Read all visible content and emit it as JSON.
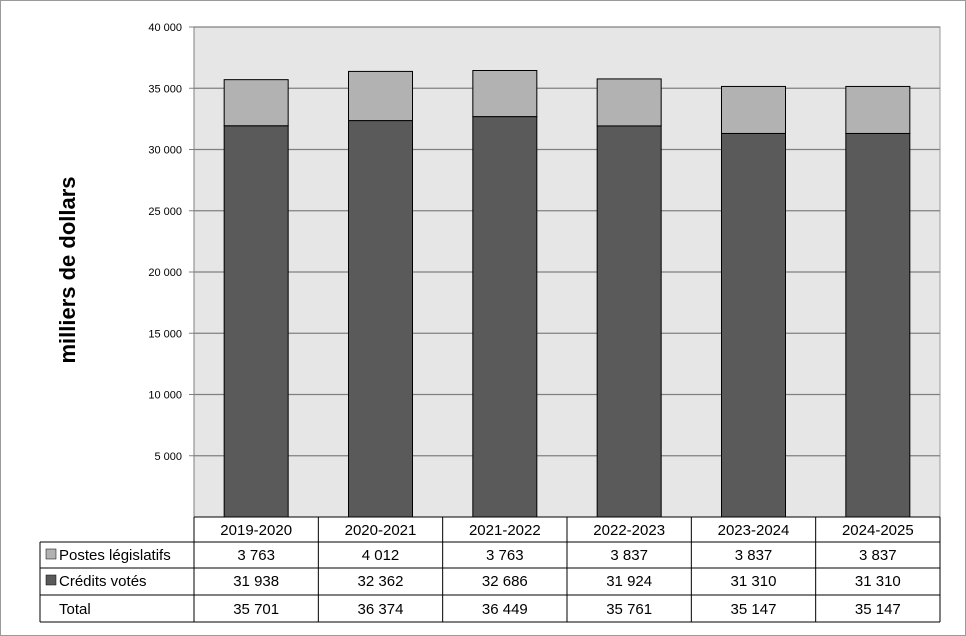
{
  "chart_data": {
    "type": "bar",
    "stacked": true,
    "ylabel": "milliers  de dollars",
    "ylim": [
      0,
      40000
    ],
    "yticks": [
      "5 000",
      "10 000",
      "15 000",
      "20 000",
      "25 000",
      "30 000",
      "35 000",
      "40 000"
    ],
    "ytick_values": [
      5000,
      10000,
      15000,
      20000,
      25000,
      30000,
      35000,
      40000
    ],
    "grid": true,
    "categories": [
      "2019-2020",
      "2020-2021",
      "2021-2022",
      "2022-2023",
      "2023-2024",
      "2024-2025"
    ],
    "series": [
      {
        "name": "Crédits votés",
        "color": "#5a5a5a",
        "values": [
          31938,
          32362,
          32686,
          31924,
          31310,
          31310
        ],
        "labels": [
          "31 938",
          "32 362",
          "32 686",
          "31 924",
          "31 310",
          "31 310"
        ]
      },
      {
        "name": "Postes législatifs",
        "color": "#b2b2b2",
        "values": [
          3763,
          4012,
          3763,
          3837,
          3837,
          3837
        ],
        "labels": [
          "3 763",
          "4 012",
          "3 763",
          "3 837",
          "3 837",
          "3 837"
        ]
      }
    ],
    "totals": {
      "name": "Total",
      "values": [
        35701,
        36374,
        36449,
        35761,
        35147,
        35147
      ],
      "labels": [
        "35 701",
        "36 374",
        "36 449",
        "35 761",
        "35 147",
        "35 147"
      ]
    },
    "plot_background": "#e6e6e6",
    "legend": "table"
  }
}
